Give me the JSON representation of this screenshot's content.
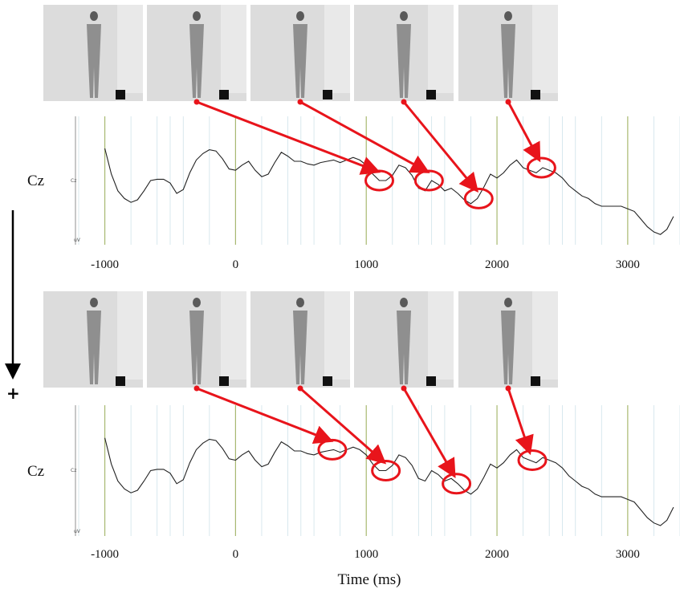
{
  "chart_data": [
    {
      "type": "line",
      "title": "",
      "channel": "Cz",
      "ylabel_small": "Cz",
      "unit_small": "uV",
      "xlabel": "",
      "xlim": [
        -1200,
        3400
      ],
      "ylim": [
        0,
        1
      ],
      "xticks": [
        -1000,
        0,
        1000,
        2000,
        3000
      ],
      "series": [
        {
          "x": [
            -1000,
            -950,
            -900,
            -850,
            -800,
            -750,
            -700,
            -650,
            -600,
            -550,
            -500,
            -450,
            -400,
            -350,
            -300,
            -250,
            -200,
            -150,
            -100,
            -50,
            0,
            50,
            100,
            150,
            200,
            250,
            300,
            350,
            400,
            450,
            500,
            550,
            600,
            650,
            700,
            750,
            800,
            850,
            900,
            950,
            1000,
            1050,
            1100,
            1150,
            1200,
            1250,
            1300,
            1350,
            1400,
            1450,
            1500,
            1550,
            1600,
            1650,
            1700,
            1750,
            1800,
            1850,
            1900,
            1950,
            2000,
            2050,
            2100,
            2150,
            2200,
            2250,
            2300,
            2350,
            2400,
            2450,
            2500,
            2550,
            2600,
            2650,
            2700,
            2750,
            2800,
            2850,
            2900,
            2950,
            3000,
            3050,
            3100,
            3150,
            3200,
            3250,
            3300,
            3350
          ],
          "y": [
            0.75,
            0.55,
            0.42,
            0.36,
            0.33,
            0.35,
            0.42,
            0.5,
            0.51,
            0.51,
            0.48,
            0.4,
            0.43,
            0.56,
            0.66,
            0.71,
            0.74,
            0.73,
            0.67,
            0.59,
            0.58,
            0.62,
            0.65,
            0.58,
            0.53,
            0.55,
            0.64,
            0.72,
            0.69,
            0.65,
            0.65,
            0.63,
            0.62,
            0.64,
            0.65,
            0.66,
            0.64,
            0.66,
            0.68,
            0.66,
            0.62,
            0.55,
            0.5,
            0.5,
            0.54,
            0.62,
            0.6,
            0.54,
            0.44,
            0.42,
            0.5,
            0.47,
            0.42,
            0.44,
            0.4,
            0.35,
            0.32,
            0.36,
            0.45,
            0.55,
            0.52,
            0.56,
            0.62,
            0.66,
            0.6,
            0.58,
            0.56,
            0.6,
            0.58,
            0.56,
            0.52,
            0.46,
            0.42,
            0.38,
            0.36,
            0.32,
            0.3,
            0.3,
            0.3,
            0.3,
            0.28,
            0.26,
            0.2,
            0.14,
            0.1,
            0.08,
            0.12,
            0.22
          ]
        }
      ],
      "markers": [
        {
          "from_frame": 2,
          "at_x": 1100
        },
        {
          "from_frame": 3,
          "at_x": 1480
        },
        {
          "from_frame": 4,
          "at_x": 1860
        },
        {
          "from_frame": 5,
          "at_x": 2340
        }
      ],
      "frames": 5
    },
    {
      "type": "line",
      "title": "",
      "channel": "Cz",
      "ylabel_small": "Cz",
      "unit_small": "uV",
      "xlabel": "Time (ms)",
      "xlim": [
        -1200,
        3400
      ],
      "ylim": [
        0,
        1
      ],
      "xticks": [
        -1000,
        0,
        1000,
        2000,
        3000
      ],
      "series": [
        {
          "x": [
            -1000,
            -950,
            -900,
            -850,
            -800,
            -750,
            -700,
            -650,
            -600,
            -550,
            -500,
            -450,
            -400,
            -350,
            -300,
            -250,
            -200,
            -150,
            -100,
            -50,
            0,
            50,
            100,
            150,
            200,
            250,
            300,
            350,
            400,
            450,
            500,
            550,
            600,
            650,
            700,
            750,
            800,
            850,
            900,
            950,
            1000,
            1050,
            1100,
            1150,
            1200,
            1250,
            1300,
            1350,
            1400,
            1450,
            1500,
            1550,
            1600,
            1650,
            1700,
            1750,
            1800,
            1850,
            1900,
            1950,
            2000,
            2050,
            2100,
            2150,
            2200,
            2250,
            2300,
            2350,
            2400,
            2450,
            2500,
            2550,
            2600,
            2650,
            2700,
            2750,
            2800,
            2850,
            2900,
            2950,
            3000,
            3050,
            3100,
            3150,
            3200,
            3250,
            3300,
            3350
          ],
          "y": [
            0.75,
            0.55,
            0.42,
            0.36,
            0.33,
            0.35,
            0.42,
            0.5,
            0.51,
            0.51,
            0.48,
            0.4,
            0.43,
            0.56,
            0.66,
            0.71,
            0.74,
            0.73,
            0.67,
            0.59,
            0.58,
            0.62,
            0.65,
            0.58,
            0.53,
            0.55,
            0.64,
            0.72,
            0.69,
            0.65,
            0.65,
            0.63,
            0.62,
            0.64,
            0.65,
            0.66,
            0.64,
            0.66,
            0.68,
            0.66,
            0.62,
            0.55,
            0.5,
            0.5,
            0.54,
            0.62,
            0.6,
            0.54,
            0.44,
            0.42,
            0.5,
            0.47,
            0.42,
            0.44,
            0.4,
            0.35,
            0.32,
            0.36,
            0.45,
            0.55,
            0.52,
            0.56,
            0.62,
            0.66,
            0.6,
            0.58,
            0.56,
            0.6,
            0.58,
            0.56,
            0.52,
            0.46,
            0.42,
            0.38,
            0.36,
            0.32,
            0.3,
            0.3,
            0.3,
            0.3,
            0.28,
            0.26,
            0.2,
            0.14,
            0.1,
            0.08,
            0.12,
            0.22
          ]
        }
      ],
      "markers": [
        {
          "from_frame": 2,
          "at_x": 740
        },
        {
          "from_frame": 3,
          "at_x": 1150
        },
        {
          "from_frame": 4,
          "at_x": 1690
        },
        {
          "from_frame": 5,
          "at_x": 2270
        }
      ],
      "frames": 5
    }
  ],
  "arrow_glyph": "+",
  "colors": {
    "trace": "#222222",
    "marker": "#e8141b",
    "gridline_green": "#a8b870",
    "gridline_blue": "#cfe3ea",
    "frame_bg": "#dcdcdc",
    "figure_bg": "#d0d0d0"
  }
}
